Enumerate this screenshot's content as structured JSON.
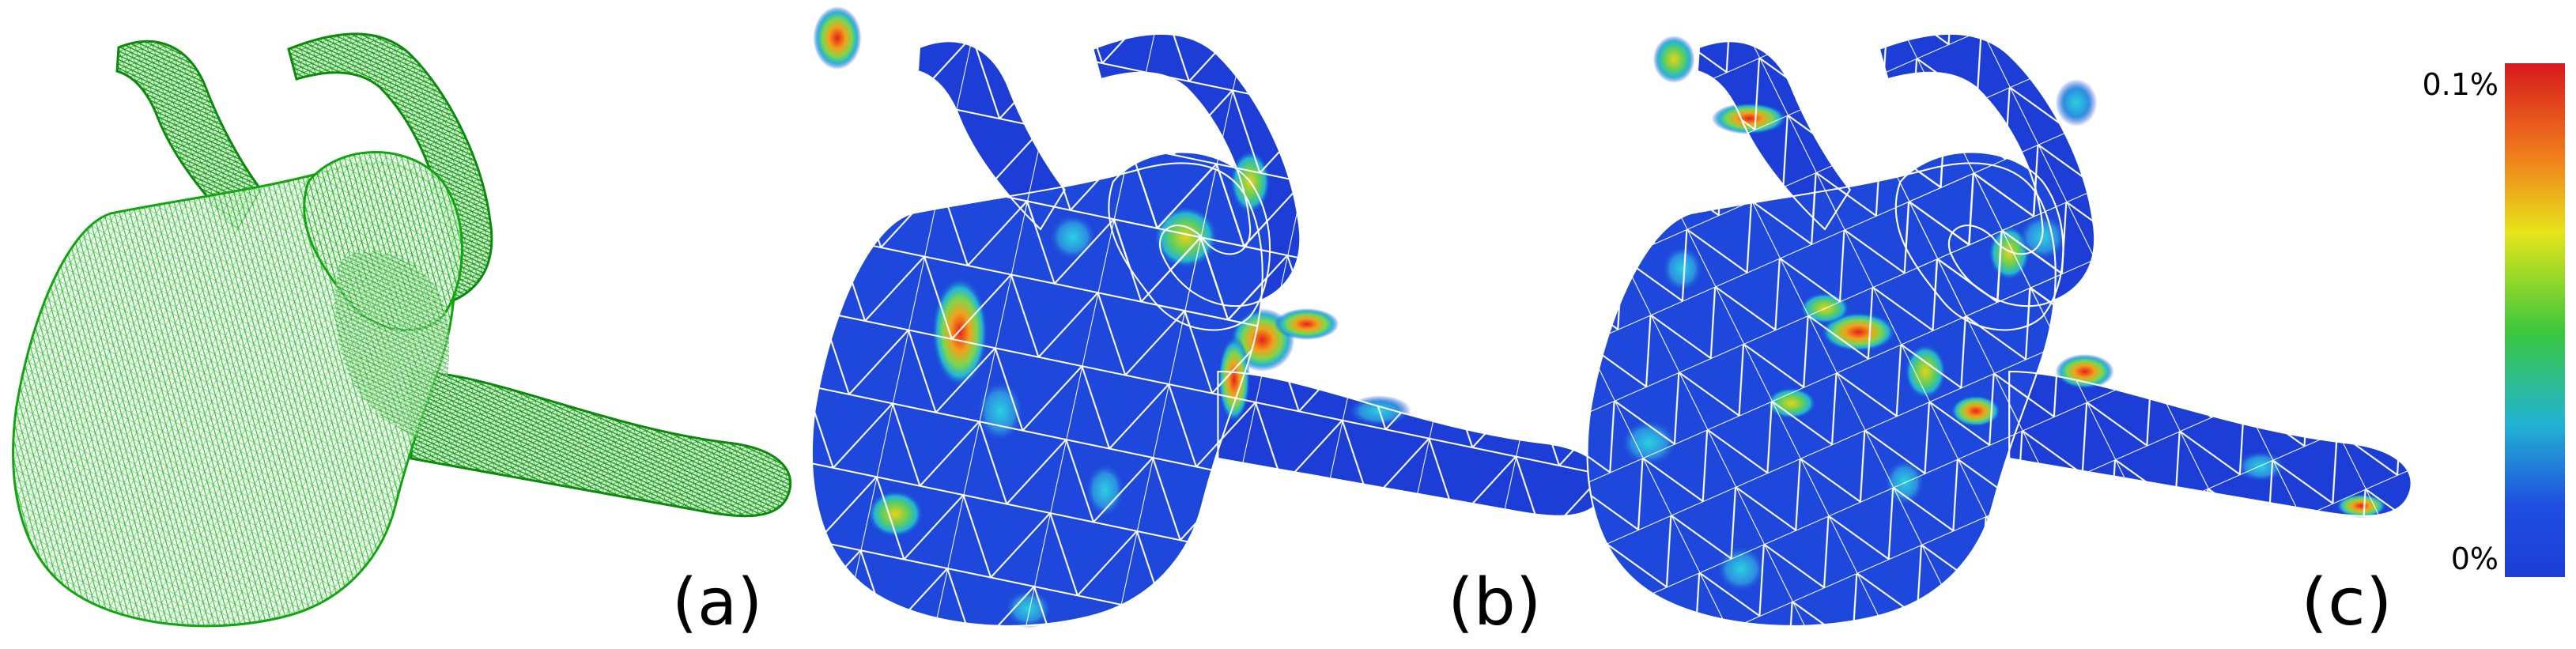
{
  "figure": {
    "panels": [
      {
        "label": "(a)",
        "style": "wireframe",
        "mesh_color": "#1fc21f"
      },
      {
        "label": "(b)",
        "style": "error-map",
        "mesh_color": "#ffffff"
      },
      {
        "label": "(c)",
        "style": "error-map",
        "mesh_color": "#ffffff"
      }
    ],
    "colorbar": {
      "max_label": "0.1%",
      "min_label": "0%",
      "colors": [
        "#d7191c",
        "#f07d1c",
        "#e5e51a",
        "#3cc83c",
        "#22b4d2",
        "#1f4fe0",
        "#1c3ed6"
      ]
    }
  }
}
